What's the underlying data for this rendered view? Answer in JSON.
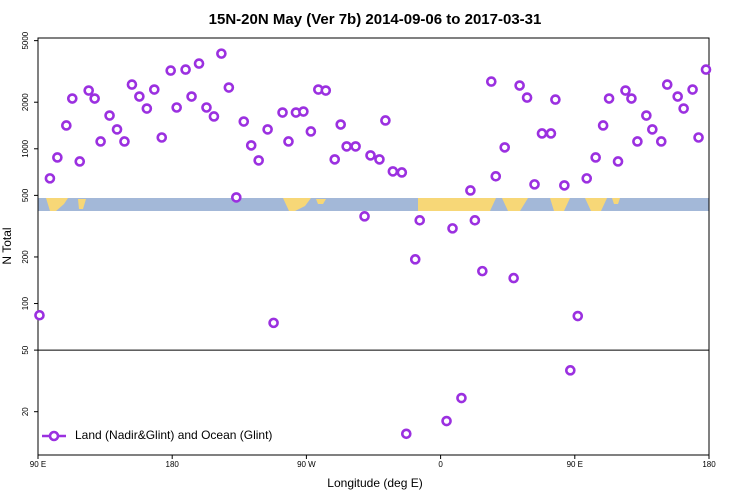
{
  "chart_data": {
    "type": "scatter",
    "title": "15N-20N May (Ver 7b)   2014-09-06 to 2017-03-31",
    "xlabel": "Longitude (deg E)",
    "ylabel": "N Total",
    "log_y": true,
    "legend": "lower left",
    "hline": 50,
    "xlim": [
      90,
      540
    ],
    "ylim": [
      10.5,
      5200
    ],
    "xticks": [
      {
        "value": 90,
        "label": "90 E"
      },
      180,
      {
        "value": 270,
        "label": "90 W"
      },
      {
        "value": 360,
        "label": "0"
      },
      {
        "value": 450,
        "label": "90 E"
      },
      {
        "value": 540,
        "label": "180"
      }
    ],
    "yticks": [
      20,
      50,
      100,
      200,
      500,
      1000,
      2000,
      5000
    ],
    "series": [
      {
        "name": "Land (Nadir&Glint) and Ocean (Glint)",
        "color": "#9b30e0",
        "x": [
          91,
          98,
          103,
          109,
          113,
          118,
          124,
          128,
          132,
          138,
          143,
          148,
          153,
          158,
          163,
          168,
          173,
          179,
          183,
          189,
          193,
          198,
          203,
          208,
          213,
          218,
          223,
          228,
          233,
          238,
          244,
          248,
          254,
          258,
          263,
          268,
          273,
          278,
          283,
          289,
          293,
          297,
          303,
          309,
          313,
          319,
          323,
          328,
          334,
          337,
          343,
          346,
          364,
          368,
          374,
          380,
          383,
          388,
          394,
          397,
          403,
          409,
          413,
          418,
          423,
          428,
          434,
          437,
          443,
          447,
          452,
          458,
          464,
          469,
          473,
          479,
          484,
          488,
          492,
          498,
          502,
          508,
          512,
          519,
          523,
          529,
          533,
          538
        ],
        "values": [
          84,
          644,
          879,
          1415,
          2113,
          828,
          2379,
          2113,
          1115,
          1640,
          1334,
          1115,
          2600,
          2177,
          1820,
          2415,
          1183,
          3202,
          1849,
          3250,
          2177,
          3554,
          1849,
          1618,
          4121,
          2488,
          485,
          1500,
          1052,
          841,
          1334,
          75,
          1715,
          1115,
          1715,
          1741,
          1294,
          2415,
          2379,
          854,
          1435,
          1036,
          1036,
          366,
          906,
          854,
          1524,
          714,
          703,
          14.4,
          193,
          345,
          17.4,
          306,
          24.5,
          538,
          345,
          162,
          2719,
          664,
          1021,
          146,
          2564,
          2143,
          589,
          1256,
          1256,
          2080,
          580,
          37,
          83,
          644,
          879,
          1415,
          2113,
          828,
          2379,
          2113,
          1115,
          1640,
          1334,
          1115,
          2600,
          2177,
          1820,
          2415,
          1183,
          3250
        ]
      }
    ]
  }
}
